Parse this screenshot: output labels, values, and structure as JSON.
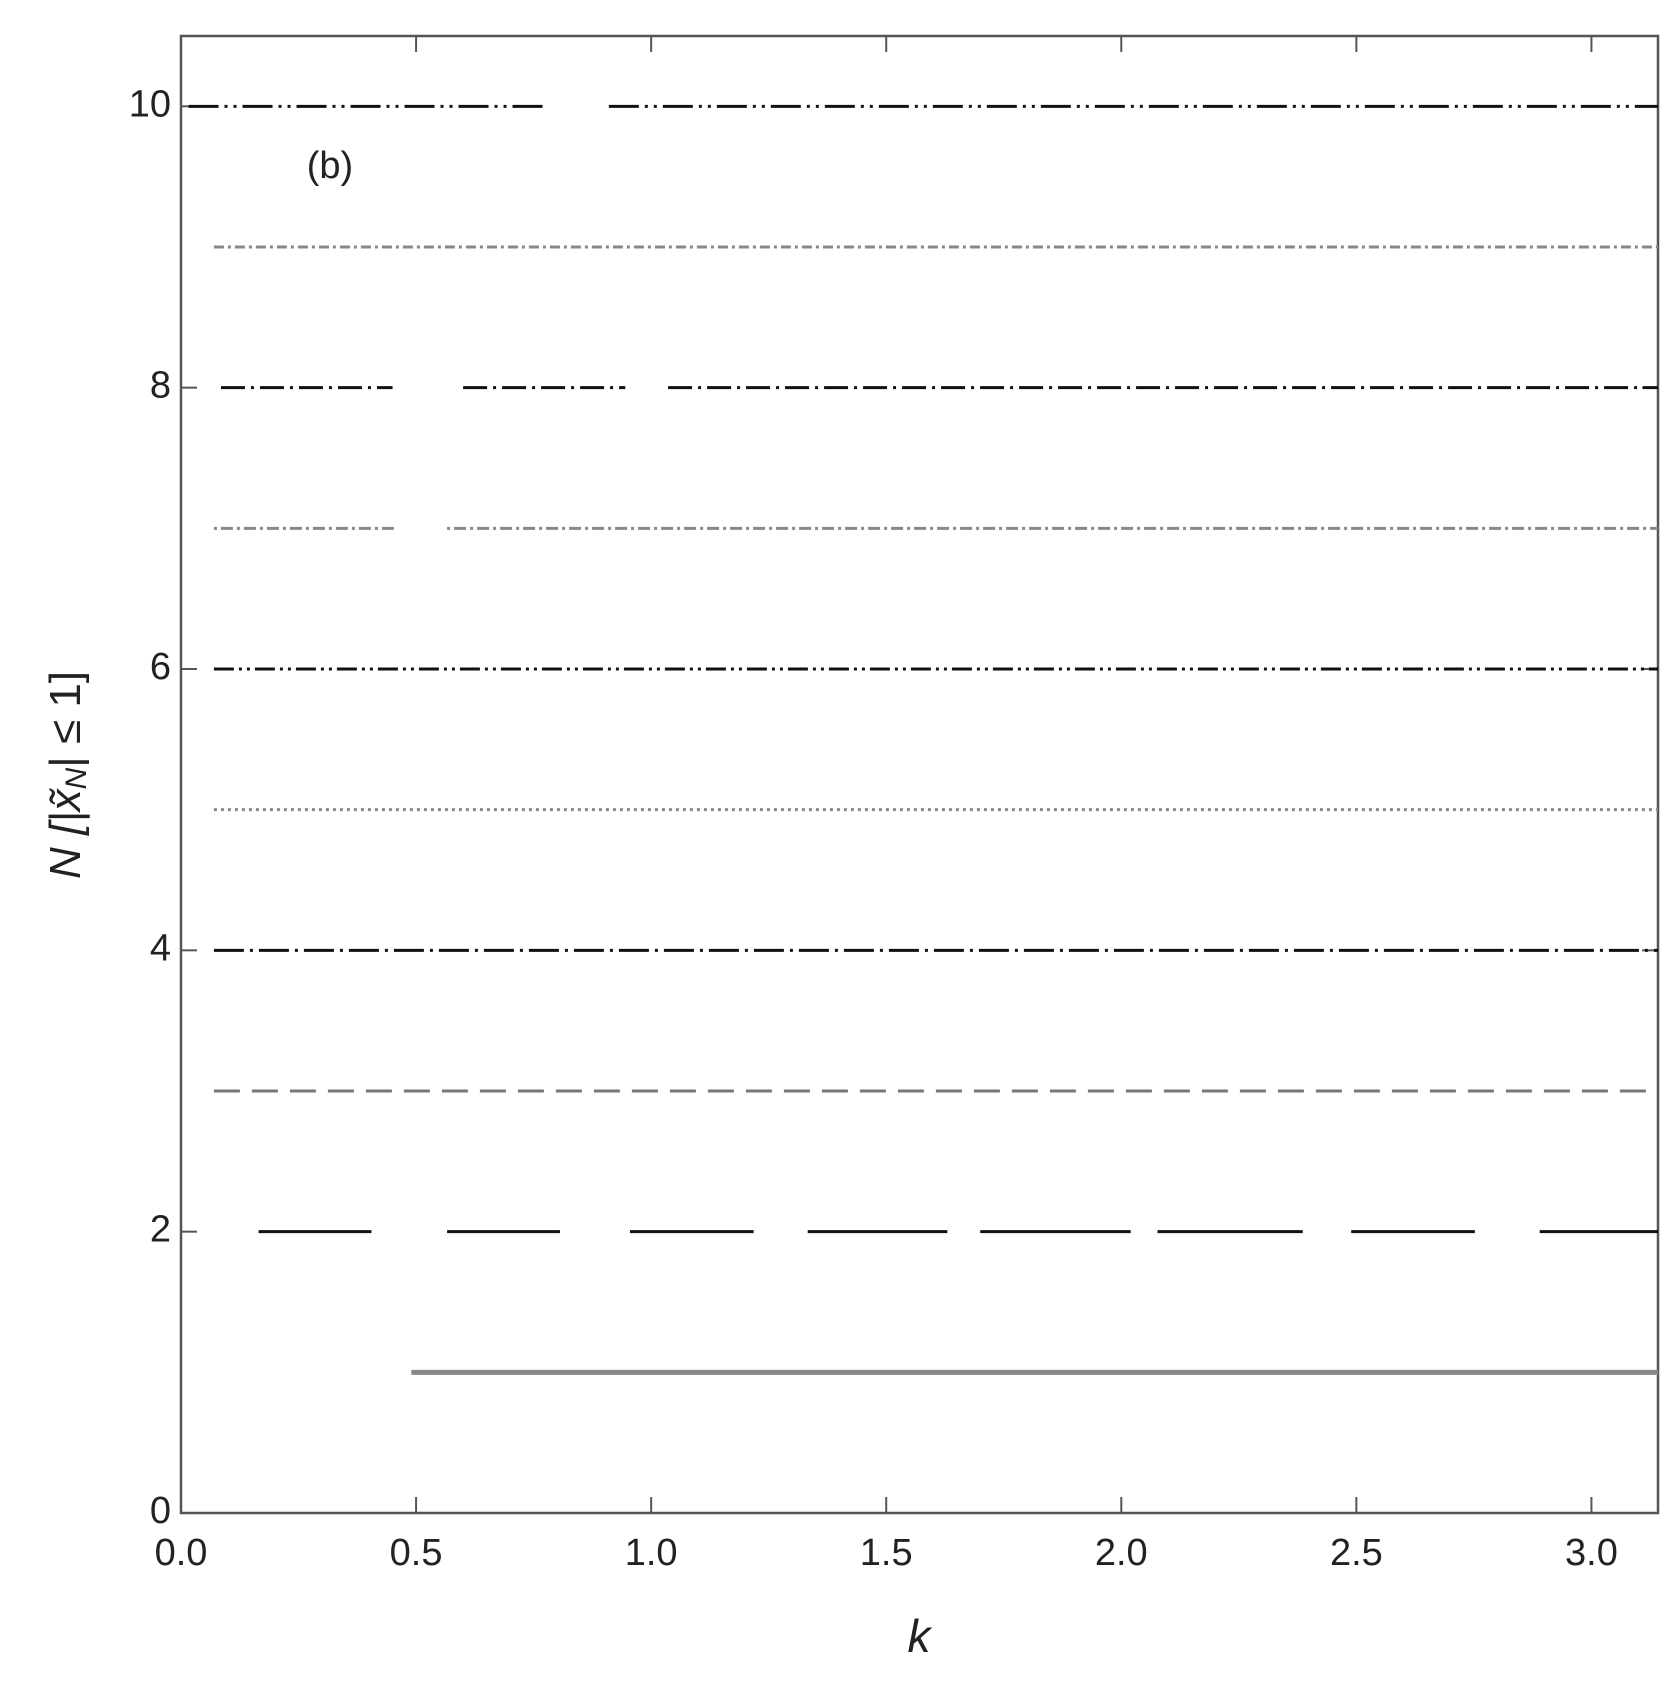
{
  "chart_data": {
    "type": "line",
    "annotation": "(b)",
    "xlabel": "k",
    "ylabel": {
      "main": "N [|x̃",
      "sub": "N",
      "end": "| ≤ 1]"
    },
    "xlim": [
      0,
      3.1416
    ],
    "ylim": [
      0,
      10.5
    ],
    "xticks": [
      {
        "value": 0,
        "label": "0.0"
      },
      {
        "value": 0.5,
        "label": "0.5"
      },
      {
        "value": 1,
        "label": "1.0"
      },
      {
        "value": 1.5,
        "label": "1.5"
      },
      {
        "value": 2,
        "label": "2.0"
      },
      {
        "value": 2.5,
        "label": "2.5"
      },
      {
        "value": 3,
        "label": "3.0"
      }
    ],
    "yticks": [
      0,
      2,
      4,
      6,
      8,
      10
    ],
    "series": [
      {
        "color": "#888888",
        "dash": [],
        "x": [
          0.49,
          3.1416
        ],
        "values": [
          1,
          1
        ]
      },
      {
        "color": "#111111",
        "dash": [],
        "x": [
          0.165,
          0.405,
          null,
          0.566,
          0.806,
          null,
          0.955,
          1.218,
          null,
          1.333,
          1.63,
          null,
          1.7,
          2.02,
          null,
          2.077,
          2.386,
          null,
          2.489,
          2.752,
          null,
          2.89,
          3.1416
        ],
        "values": [
          2,
          2,
          null,
          2,
          2,
          null,
          2,
          2,
          null,
          2,
          2,
          null,
          2,
          2,
          null,
          2,
          2,
          null,
          2,
          2,
          null,
          2,
          2
        ]
      },
      {
        "color": "#777777",
        "dash": [
          26,
          12
        ],
        "x": [
          0.07,
          3.1416
        ],
        "values": [
          3,
          3
        ]
      },
      {
        "color": "#111111",
        "dash": [
          30,
          6,
          3,
          6
        ],
        "x": [
          0.07,
          3.1416
        ],
        "values": [
          4,
          4
        ]
      },
      {
        "color": "#888888",
        "dash": [
          3,
          4
        ],
        "x": [
          0.07,
          3.1416
        ],
        "values": [
          5,
          5
        ]
      },
      {
        "color": "#111111",
        "dash": [
          20,
          5,
          3,
          5,
          3,
          5
        ],
        "x": [
          0.07,
          3.1416
        ],
        "values": [
          6,
          6
        ]
      },
      {
        "color": "#888888",
        "dash": [
          3,
          4,
          12,
          4
        ],
        "x": [
          0.07,
          0.46,
          null,
          0.566,
          3.1416
        ],
        "values": [
          7,
          7,
          null,
          7,
          7
        ]
      },
      {
        "color": "#111111",
        "dash": [
          24,
          6,
          3,
          6
        ],
        "x": [
          0.085,
          0.45,
          null,
          0.6,
          0.945,
          null,
          1.036,
          3.1416
        ],
        "values": [
          8,
          8,
          null,
          8,
          8,
          null,
          8,
          8
        ]
      },
      {
        "color": "#888888",
        "dash": [
          10,
          4,
          3,
          4
        ],
        "x": [
          0.07,
          3.1416
        ],
        "values": [
          9,
          9
        ]
      },
      {
        "color": "#111111",
        "dash": [
          30,
          6,
          3,
          6,
          3,
          6
        ],
        "x": [
          0.016,
          0.77,
          null,
          0.91,
          3.1416
        ],
        "values": [
          10,
          10,
          null,
          10,
          10
        ]
      }
    ]
  }
}
